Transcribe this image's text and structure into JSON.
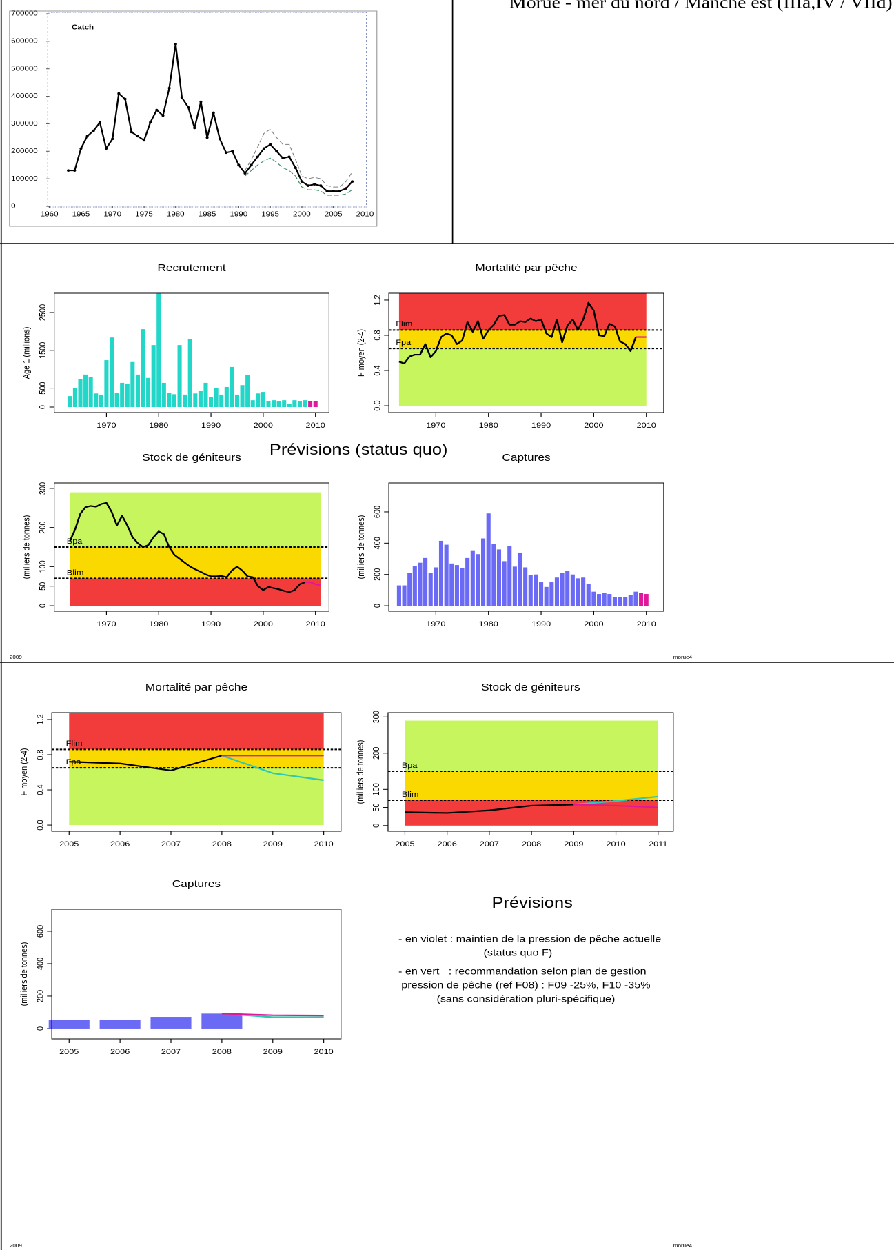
{
  "header": {
    "title": "Morue - mer du nord / Manche est (IIIa,IV / VIId)"
  },
  "section_title": "Prévisions (status quo)",
  "footer": {
    "year": "2009",
    "code": "morue4"
  },
  "notes": {
    "title": "Prévisions",
    "lines": [
      "- en violet : maintien de la pression de pêche actuelle",
      "(status quo F)",
      "- en vert   : recommandation selon plan de gestion",
      "pression de pêche (ref F08) : F09 -25%, F10 -35%",
      "(sans considération pluri-spécifique)"
    ]
  },
  "chart_data": [
    {
      "type": "line",
      "title": "Catch",
      "xlim": [
        1960,
        2010
      ],
      "xticks": [
        1960,
        1965,
        1970,
        1975,
        1980,
        1985,
        1990,
        1995,
        2000,
        2005,
        2010
      ],
      "ylim": [
        0,
        700000
      ],
      "yticks": [
        0,
        100000,
        200000,
        300000,
        400000,
        500000,
        600000,
        700000
      ],
      "series": [
        {
          "color": "#000000",
          "markers": true,
          "x": [
            1963,
            1964,
            1965,
            1966,
            1967,
            1968,
            1969,
            1970,
            1971,
            1972,
            1973,
            1974,
            1975,
            1976,
            1977,
            1978,
            1979,
            1980,
            1981,
            1982,
            1983,
            1984,
            1985,
            1986,
            1987,
            1988,
            1989,
            1990,
            1991,
            1992,
            1993,
            1994,
            1995,
            1996,
            1997,
            1998,
            1999,
            2000,
            2001,
            2002,
            2003,
            2004,
            2005,
            2006,
            2007,
            2008
          ],
          "values": [
            130000,
            130000,
            210000,
            255000,
            275000,
            305000,
            210000,
            245000,
            410000,
            390000,
            270000,
            255000,
            240000,
            305000,
            350000,
            330000,
            430000,
            590000,
            395000,
            360000,
            285000,
            380000,
            250000,
            340000,
            245000,
            195000,
            200000,
            150000,
            120000,
            150000,
            180000,
            210000,
            225000,
            200000,
            175000,
            180000,
            140000,
            90000,
            75000,
            80000,
            75000,
            55000,
            55000,
            55000,
            65000,
            90000
          ]
        },
        {
          "color": "#7f7f7f",
          "dash": true,
          "x": [
            1991,
            1992,
            1993,
            1994,
            1995,
            1996,
            1997,
            1998,
            1999,
            2000,
            2001,
            2002,
            2003,
            2004,
            2005,
            2006,
            2007,
            2008
          ],
          "values": [
            130000,
            170000,
            215000,
            265000,
            280000,
            250000,
            225000,
            225000,
            170000,
            110000,
            100000,
            105000,
            100000,
            75000,
            70000,
            70000,
            90000,
            125000
          ]
        },
        {
          "color": "#2e8b57",
          "dash": true,
          "x": [
            1991,
            1992,
            1993,
            1994,
            1995,
            1996,
            1997,
            1998,
            1999,
            2000,
            2001,
            2002,
            2003,
            2004,
            2005,
            2006,
            2007,
            2008
          ],
          "values": [
            110000,
            130000,
            150000,
            165000,
            175000,
            160000,
            140000,
            130000,
            110000,
            70000,
            60000,
            60000,
            55000,
            40000,
            40000,
            40000,
            45000,
            60000
          ]
        }
      ]
    },
    {
      "type": "bar",
      "title": "Recrutement",
      "ylabel": "Age 1 (millions)",
      "xlim": [
        1960,
        2012.6
      ],
      "xticks": [
        1970,
        1980,
        1990,
        2000,
        2010
      ],
      "ylim": [
        -146,
        3011
      ],
      "yticks": [
        0,
        500,
        1500,
        2500
      ],
      "series": [
        {
          "color": "#22d6c8",
          "x": [
            1963,
            1964,
            1965,
            1966,
            1967,
            1968,
            1969,
            1970,
            1971,
            1972,
            1973,
            1974,
            1975,
            1976,
            1977,
            1978,
            1979,
            1980,
            1981,
            1982,
            1983,
            1984,
            1985,
            1986,
            1987,
            1988,
            1989,
            1990,
            1991,
            1992,
            1993,
            1994,
            1995,
            1996,
            1997,
            1998,
            1999,
            2000,
            2001,
            2002,
            2003,
            2004,
            2005,
            2006,
            2007,
            2008
          ],
          "values": [
            290,
            510,
            730,
            860,
            800,
            360,
            330,
            1240,
            1840,
            380,
            640,
            620,
            1190,
            860,
            2060,
            770,
            1640,
            3000,
            640,
            380,
            340,
            1640,
            330,
            1800,
            360,
            420,
            640,
            260,
            510,
            330,
            530,
            1060,
            330,
            580,
            840,
            180,
            360,
            400,
            150,
            180,
            150,
            180,
            90,
            180,
            150,
            180
          ]
        },
        {
          "color": "#e0189a",
          "x": [
            2009,
            2010
          ],
          "values": [
            150,
            150
          ]
        }
      ]
    },
    {
      "type": "line",
      "title": "Mortalité par pêche",
      "ylabel": "F moyen (2-4)",
      "xlim": [
        1961.06,
        2013.3
      ],
      "xticks": [
        1970,
        1980,
        1990,
        2000,
        2010
      ],
      "ylim": [
        -0.078,
        1.278
      ],
      "yticks": [
        {
          "value": 0,
          "label": "0.0"
        },
        0.4,
        0.8,
        1.2
      ],
      "zones": {
        "from": 0,
        "to": 1.278,
        "colors": [
          "#c6f55e",
          "#f9d900",
          "#f23b3b"
        ]
      },
      "reference_lines": [
        {
          "label": "Fpa",
          "value": 0.65
        },
        {
          "label": "Flim",
          "value": 0.86
        }
      ],
      "series": [
        {
          "color": "#000000",
          "x": [
            1963,
            1964,
            1965,
            1966,
            1967,
            1968,
            1969,
            1970,
            1971,
            1972,
            1973,
            1974,
            1975,
            1976,
            1977,
            1978,
            1979,
            1980,
            1981,
            1982,
            1983,
            1984,
            1985,
            1986,
            1987,
            1988,
            1989,
            1990,
            1991,
            1992,
            1993,
            1994,
            1995,
            1996,
            1997,
            1998,
            1999,
            2000,
            2001,
            2002,
            2003,
            2004,
            2005,
            2006,
            2007,
            2008
          ],
          "values": [
            0.5,
            0.48,
            0.56,
            0.58,
            0.58,
            0.7,
            0.55,
            0.62,
            0.78,
            0.82,
            0.8,
            0.7,
            0.74,
            0.95,
            0.84,
            0.96,
            0.76,
            0.86,
            0.92,
            1.02,
            1.03,
            0.92,
            0.92,
            0.96,
            0.95,
            0.99,
            0.96,
            0.98,
            0.82,
            0.78,
            0.98,
            0.72,
            0.91,
            0.98,
            0.86,
            0.98,
            1.17,
            1.08,
            0.8,
            0.79,
            0.93,
            0.9,
            0.73,
            0.7,
            0.62,
            0.78
          ]
        },
        {
          "color": "#e0189a",
          "x": [
            2008,
            2009,
            2010
          ],
          "values": [
            0.78,
            0.78,
            0.78
          ]
        }
      ]
    },
    {
      "type": "line",
      "title": "Stock de géniteurs",
      "ylabel": "(milliers de tonnes)",
      "xlim": [
        1960,
        2012.6
      ],
      "xticks": [
        1970,
        1980,
        1990,
        2000,
        2010
      ],
      "ylim": [
        -14,
        314
      ],
      "yticks": [
        0,
        50,
        100,
        200,
        300
      ],
      "zones": {
        "from": 0,
        "to": 290,
        "colors": [
          "#f23b3b",
          "#f9d900",
          "#c6f55e"
        ]
      },
      "reference_lines": [
        {
          "label": "Blim",
          "value": 70
        },
        {
          "label": "Bpa",
          "value": 150
        }
      ],
      "series": [
        {
          "color": "#000000",
          "x": [
            1963,
            1964,
            1965,
            1966,
            1967,
            1968,
            1969,
            1970,
            1971,
            1972,
            1973,
            1974,
            1975,
            1976,
            1977,
            1978,
            1979,
            1980,
            1981,
            1982,
            1983,
            1984,
            1985,
            1986,
            1987,
            1988,
            1989,
            1990,
            1991,
            1992,
            1993,
            1994,
            1995,
            1996,
            1997,
            1998,
            1999,
            2000,
            2001,
            2002,
            2003,
            2004,
            2005,
            2006,
            2007,
            2008
          ],
          "values": [
            165,
            195,
            235,
            252,
            255,
            253,
            260,
            263,
            240,
            205,
            230,
            205,
            175,
            160,
            150,
            155,
            175,
            190,
            183,
            150,
            130,
            120,
            110,
            100,
            93,
            87,
            80,
            75,
            75,
            76,
            73,
            90,
            100,
            90,
            75,
            73,
            50,
            40,
            48,
            45,
            42,
            38,
            35,
            40,
            55,
            60
          ]
        },
        {
          "color": "#e0189a",
          "x": [
            2008,
            2009,
            2010,
            2011
          ],
          "values": [
            60,
            60,
            55,
            52
          ]
        }
      ]
    },
    {
      "type": "bar",
      "title": "Captures",
      "ylabel": "(milliers de tonnes)",
      "xlim": [
        1961.06,
        2013.3
      ],
      "xticks": [
        1970,
        1980,
        1990,
        2000,
        2010
      ],
      "ylim": [
        -35,
        785
      ],
      "yticks": [
        0,
        200,
        400,
        600
      ],
      "series": [
        {
          "color": "#6a6af5",
          "x": [
            1963,
            1964,
            1965,
            1966,
            1967,
            1968,
            1969,
            1970,
            1971,
            1972,
            1973,
            1974,
            1975,
            1976,
            1977,
            1978,
            1979,
            1980,
            1981,
            1982,
            1983,
            1984,
            1985,
            1986,
            1987,
            1988,
            1989,
            1990,
            1991,
            1992,
            1993,
            1994,
            1995,
            1996,
            1997,
            1998,
            1999,
            2000,
            2001,
            2002,
            2003,
            2004,
            2005,
            2006,
            2007,
            2008
          ],
          "values": [
            130,
            130,
            210,
            255,
            275,
            305,
            210,
            245,
            415,
            390,
            270,
            260,
            240,
            305,
            350,
            330,
            430,
            590,
            395,
            360,
            285,
            380,
            250,
            340,
            245,
            195,
            200,
            150,
            120,
            150,
            180,
            210,
            225,
            200,
            175,
            180,
            140,
            90,
            75,
            80,
            75,
            55,
            55,
            55,
            70,
            90
          ]
        },
        {
          "color": "#e0189a",
          "x": [
            2009,
            2010
          ],
          "values": [
            80,
            75
          ]
        }
      ]
    },
    {
      "type": "line",
      "title": "Mortalité par pêche",
      "ylabel": "F moyen (2-4)",
      "xlim": [
        2004.66,
        2010.34
      ],
      "xticks": [
        2005,
        2006,
        2007,
        2008,
        2009,
        2010
      ],
      "ylim": [
        -0.07,
        1.278
      ],
      "yticks": [
        {
          "value": 0,
          "label": "0.0"
        },
        0.4,
        0.8,
        1.2
      ],
      "zones": {
        "from": 0,
        "to": 1.27,
        "colors": [
          "#c6f55e",
          "#f9d900",
          "#f23b3b"
        ]
      },
      "reference_lines": [
        {
          "label": "Fpa",
          "value": 0.65
        },
        {
          "label": "Flim",
          "value": 0.86
        }
      ],
      "series": [
        {
          "color": "#000000",
          "x": [
            2005,
            2006,
            2007,
            2008
          ],
          "values": [
            0.72,
            0.7,
            0.62,
            0.79
          ]
        },
        {
          "color": "#30c8b0",
          "x": [
            2008,
            2009,
            2010
          ],
          "values": [
            0.79,
            0.59,
            0.51
          ]
        },
        {
          "color": "#e0189a",
          "x": [
            2008,
            2009,
            2010
          ],
          "values": [
            0.79,
            0.79,
            0.79
          ]
        }
      ]
    },
    {
      "type": "line",
      "title": "Stock de géniteurs",
      "ylabel": "(milliers de tonnes)",
      "xlim": [
        2004.6,
        2011.36
      ],
      "xticks": [
        2005,
        2006,
        2007,
        2008,
        2009,
        2010,
        2011
      ],
      "ylim": [
        -15.6,
        312
      ],
      "yticks": [
        0,
        50,
        100,
        200,
        300
      ],
      "zones": {
        "from": 0,
        "to": 290,
        "colors": [
          "#f23b3b",
          "#f9d900",
          "#c6f55e"
        ]
      },
      "reference_lines": [
        {
          "label": "Blim",
          "value": 70
        },
        {
          "label": "Bpa",
          "value": 150
        }
      ],
      "series": [
        {
          "color": "#000000",
          "x": [
            2005,
            2006,
            2007,
            2008,
            2009
          ],
          "values": [
            37,
            35,
            42,
            55,
            58
          ]
        },
        {
          "color": "#30c8b0",
          "x": [
            2009,
            2010,
            2011
          ],
          "values": [
            58,
            68,
            80
          ]
        },
        {
          "color": "#e0189a",
          "x": [
            2009,
            2010,
            2011
          ],
          "values": [
            58,
            55,
            50
          ]
        }
      ]
    },
    {
      "type": "bar",
      "title": "Captures",
      "ylabel": "(milliers de tonnes)",
      "xlim": [
        2004.66,
        2010.34
      ],
      "xticks": [
        2005,
        2006,
        2007,
        2008,
        2009,
        2010
      ],
      "ylim": [
        -64,
        736
      ],
      "yticks": [
        0,
        200,
        400,
        600
      ],
      "series": [
        {
          "color": "#6a6af5",
          "x": [
            2005,
            2006,
            2007,
            2008
          ],
          "values": [
            55,
            55,
            72,
            92
          ]
        },
        {
          "type": "line",
          "color": "#30c8b0",
          "x": [
            2008,
            2009,
            2010
          ],
          "values": [
            92,
            70,
            70
          ]
        },
        {
          "type": "line",
          "color": "#e0189a",
          "x": [
            2008,
            2009,
            2010
          ],
          "values": [
            92,
            82,
            80
          ]
        }
      ]
    }
  ]
}
